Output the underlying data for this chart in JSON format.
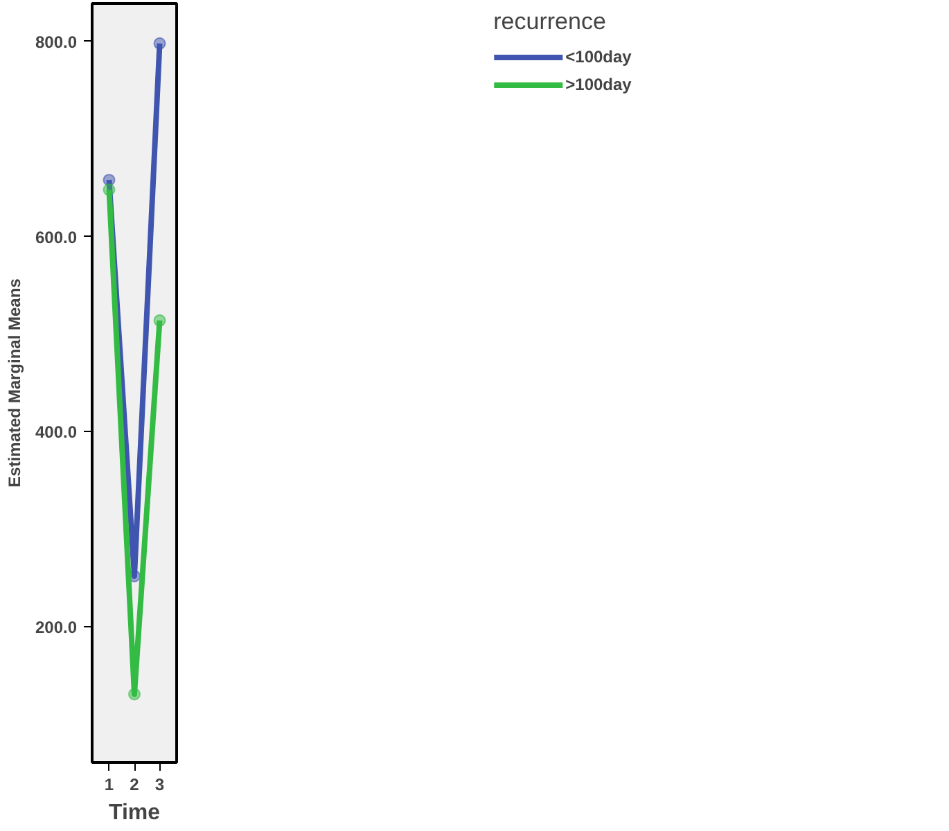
{
  "chart_data": {
    "type": "line",
    "xlabel": "Time",
    "ylabel": "Estimated Marginal Means",
    "legend_title": "recurrence",
    "x": [
      1,
      2,
      3
    ],
    "series": [
      {
        "name": "<100day",
        "color": "#3f55b0",
        "values": [
          658,
          252,
          798
        ]
      },
      {
        "name": ">100day",
        "color": "#33bb44",
        "values": [
          648,
          131,
          514
        ]
      }
    ],
    "xlim": [
      0.33,
      3.67
    ],
    "ylim": [
      61,
      839
    ],
    "xticks": [
      1,
      2,
      3
    ],
    "yticks": [
      {
        "value": 200,
        "label": "200.0"
      },
      {
        "value": 400,
        "label": "400.0"
      },
      {
        "value": 600,
        "label": "600.0"
      },
      {
        "value": 800,
        "label": "800.0"
      }
    ],
    "marker": "circle",
    "line_style": "solid",
    "grid": false,
    "legend": "top right"
  }
}
